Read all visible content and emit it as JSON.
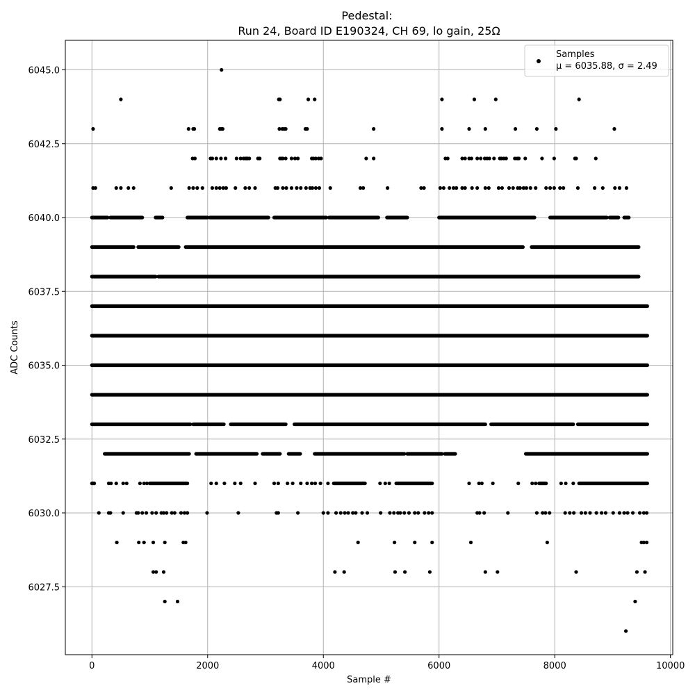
{
  "chart_data": {
    "type": "scatter",
    "title_line1": "Pedestal:",
    "title_line2": "Run 24, Board ID E190324, CH 69, lo gain, 25Ω",
    "xlabel": "Sample #",
    "ylabel": "ADC Counts",
    "xlim": [
      -460,
      10040
    ],
    "ylim": [
      6025.2,
      6046.0
    ],
    "xticks": [
      0,
      2000,
      4000,
      6000,
      8000,
      10000
    ],
    "xtick_labels": [
      "0",
      "2000",
      "4000",
      "6000",
      "8000",
      "10000"
    ],
    "yticks": [
      6027.5,
      6030.0,
      6032.5,
      6035.0,
      6037.5,
      6040.0,
      6042.5,
      6045.0
    ],
    "ytick_labels": [
      "6027.5",
      "6030.0",
      "6032.5",
      "6035.0",
      "6037.5",
      "6040.0",
      "6042.5",
      "6045.0"
    ],
    "grid": true,
    "legend_position": "top-right",
    "series": [
      {
        "name": "Samples",
        "stats_label": "μ = 6035.88, σ = 2.49",
        "color": "#000000",
        "n_samples": 9600,
        "levels": [
          {
            "y": 6045,
            "x": [
              2240
            ]
          },
          {
            "y": 6044,
            "x": [
              500,
              3230,
              3250,
              3740,
              3850,
              6050,
              6610,
              6980,
              8420
            ]
          },
          {
            "y": 6043,
            "x": [
              20,
              1670,
              1750,
              1770,
              2210,
              2240,
              2260,
              3240,
              3290,
              3320,
              3350,
              3690,
              3720,
              4870,
              6050,
              6520,
              6800,
              7320,
              7690,
              8020,
              9030
            ]
          },
          {
            "y": 6042,
            "x": [
              1740,
              1780,
              2050,
              2080,
              2150,
              2230,
              2310,
              2500,
              2570,
              2620,
              2650,
              2670,
              2690,
              2720,
              2870,
              2900,
              3250,
              3280,
              3300,
              3350,
              3450,
              3510,
              3560,
              3800,
              3830,
              3870,
              3920,
              3960,
              4740,
              4870,
              6110,
              6150,
              6400,
              6450,
              6520,
              6560,
              6660,
              6720,
              6790,
              6830,
              6870,
              6950,
              7050,
              7080,
              7120,
              7160,
              7310,
              7350,
              7380,
              7490,
              7780,
              7990,
              8350,
              8370,
              8710
            ]
          },
          {
            "y": 6041,
            "x": [
              20,
              60,
              420,
              500,
              630,
              720,
              1370,
              1680,
              1750,
              1820,
              1910,
              2080,
              2150,
              2210,
              2270,
              2320,
              2480,
              2650,
              2720,
              2820,
              3170,
              3210,
              3300,
              3360,
              3450,
              3540,
              3610,
              3700,
              3770,
              3810,
              3870,
              3930,
              4120,
              4640,
              4690,
              5110,
              5690,
              5740,
              6020,
              6080,
              6180,
              6250,
              6300,
              6400,
              6450,
              6570,
              6660,
              6800,
              6860,
              7030,
              7090,
              7210,
              7280,
              7360,
              7400,
              7460,
              7510,
              7580,
              7670,
              7850,
              7920,
              7990,
              8090,
              8150,
              8400,
              8690,
              8830,
              9040,
              9120,
              9240
            ]
          },
          {
            "y": 6040,
            "x_ranges": [
              [
                0,
                270
              ],
              [
                320,
                870
              ],
              [
                1100,
                1220
              ],
              [
                1650,
                2000
              ],
              [
                2040,
                3050
              ],
              [
                3150,
                4050
              ],
              [
                4100,
                4950
              ],
              [
                5100,
                5450
              ],
              [
                6000,
                7650
              ],
              [
                7920,
                8900
              ],
              [
                8950,
                9100
              ],
              [
                9200,
                9280
              ]
            ]
          },
          {
            "y": 6039,
            "x_ranges": [
              [
                0,
                720
              ],
              [
                800,
                1500
              ],
              [
                1620,
                7450
              ],
              [
                7600,
                9450
              ]
            ]
          },
          {
            "y": 6038,
            "x_ranges": [
              [
                0,
                1100
              ],
              [
                1150,
                9450
              ]
            ]
          },
          {
            "y": 6037,
            "x_ranges": [
              [
                0,
                9600
              ]
            ]
          },
          {
            "y": 6036,
            "x_ranges": [
              [
                0,
                9600
              ]
            ]
          },
          {
            "y": 6035,
            "x_ranges": [
              [
                0,
                9600
              ]
            ]
          },
          {
            "y": 6034,
            "x_ranges": [
              [
                0,
                9600
              ]
            ]
          },
          {
            "y": 6033,
            "x_ranges": [
              [
                0,
                1700
              ],
              [
                1750,
                2280
              ],
              [
                2400,
                3350
              ],
              [
                3500,
                6800
              ],
              [
                6900,
                8320
              ],
              [
                8400,
                9600
              ]
            ]
          },
          {
            "y": 6032,
            "x_ranges": [
              [
                220,
                1680
              ],
              [
                1800,
                2850
              ],
              [
                2950,
                3250
              ],
              [
                3400,
                3600
              ],
              [
                3850,
                5400
              ],
              [
                5450,
                6050
              ],
              [
                6100,
                6280
              ],
              [
                7500,
                9600
              ]
            ]
          },
          {
            "y": 6031,
            "x_ranges": [
              [
                0,
                40
              ],
              [
                1000,
                1650
              ],
              [
                4180,
                4720
              ],
              [
                5260,
                5880
              ],
              [
                7730,
                7850
              ],
              [
                8420,
                9600
              ]
            ],
            "x": [
              290,
              330,
              420,
              540,
              600,
              830,
              900,
              950,
              2060,
              2150,
              2290,
              2470,
              2570,
              2820,
              3150,
              3220,
              3380,
              3470,
              3610,
              3720,
              3800,
              3860,
              3950,
              4080,
              4980,
              5070,
              5140,
              6520,
              6690,
              6740,
              6930,
              7370,
              7610,
              7670,
              8110,
              8190,
              8320
            ]
          },
          {
            "y": 6030,
            "x": [
              120,
              290,
              320,
              540,
              770,
              800,
              870,
              940,
              1040,
              1110,
              1200,
              1240,
              1290,
              1380,
              1430,
              1540,
              1600,
              1650,
              1990,
              2530,
              3190,
              3220,
              3560,
              4000,
              4080,
              4220,
              4300,
              4370,
              4430,
              4510,
              4560,
              4670,
              4760,
              4990,
              5150,
              5220,
              5290,
              5330,
              5400,
              5480,
              5580,
              5640,
              5750,
              5820,
              5880,
              6660,
              6700,
              6780,
              7190,
              7690,
              7790,
              7840,
              7910,
              8180,
              8260,
              8330,
              8460,
              8530,
              8610,
              8720,
              8810,
              8880,
              9010,
              9120,
              9200,
              9260,
              9350,
              9470,
              9540,
              9590
            ]
          },
          {
            "y": 6029,
            "x": [
              430,
              810,
              900,
              1060,
              1260,
              1580,
              1620,
              4600,
              5230,
              5580,
              5880,
              6550,
              7870,
              9500,
              9540,
              9590
            ]
          },
          {
            "y": 6028,
            "x": [
              1060,
              1110,
              1240,
              4200,
              4360,
              5240,
              5410,
              5840,
              6800,
              7010,
              8370,
              9420,
              9560
            ]
          },
          {
            "y": 6027,
            "x": [
              1260,
              1480,
              9390
            ]
          },
          {
            "y": 6026,
            "x": [
              9230
            ]
          }
        ]
      }
    ]
  }
}
